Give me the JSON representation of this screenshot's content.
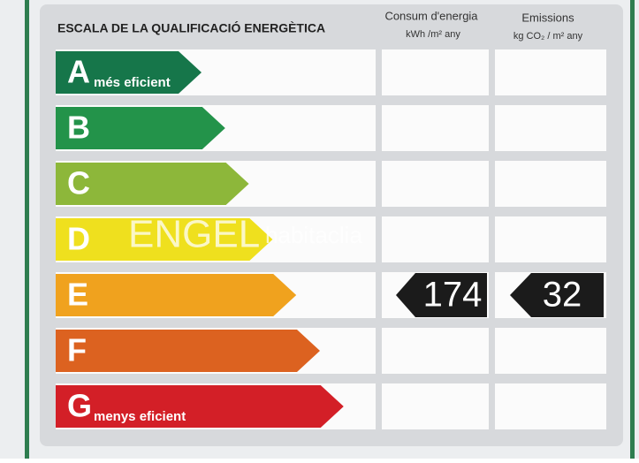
{
  "header": {
    "title": "ESCALA DE LA QUALIFICACIÓ ENERGÈTICA"
  },
  "columns": [
    {
      "title": "Consum d'energia",
      "unit": "kWh /m² any"
    },
    {
      "title": "Emissions",
      "unit": "kg CO₂ / m² any"
    }
  ],
  "ratings": [
    {
      "letter": "A",
      "note": "més eficient",
      "color": "#16764a"
    },
    {
      "letter": "B",
      "color": "#23934a"
    },
    {
      "letter": "C",
      "color": "#8db73a"
    },
    {
      "letter": "D",
      "color": "#efe01e"
    },
    {
      "letter": "E",
      "color": "#f0a21e",
      "energy": 174,
      "emissions": 32
    },
    {
      "letter": "F",
      "color": "#dc6220"
    },
    {
      "letter": "G",
      "note": "menys eficient",
      "color": "#d31f27"
    }
  ],
  "watermark": {
    "brand": "ENGEL",
    "site": "habitaclia"
  }
}
